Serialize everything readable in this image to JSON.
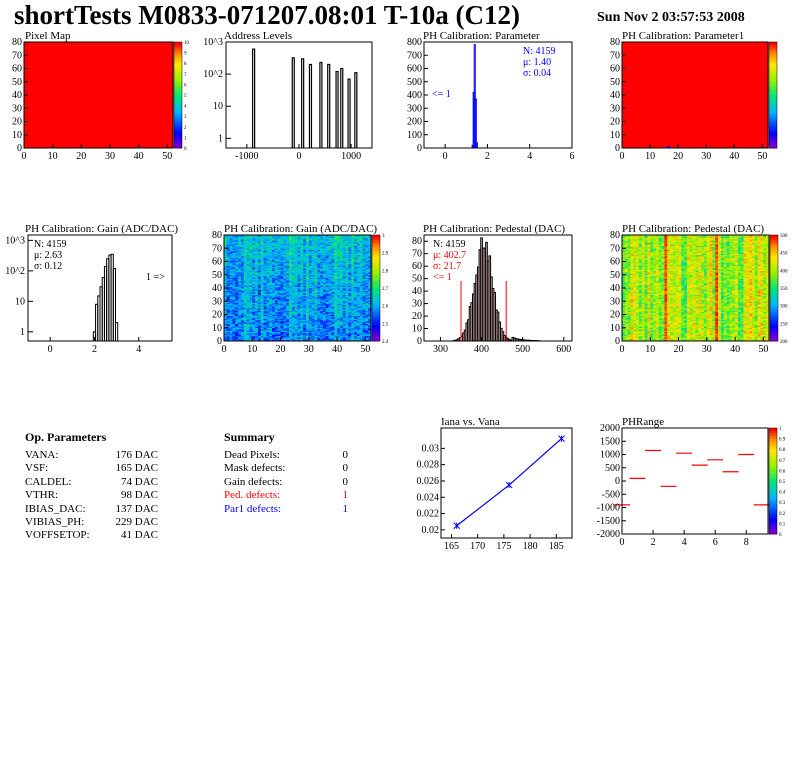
{
  "header": {
    "title": "shortTests M0833-071207.08:01 T-10a (C12)",
    "date": "Sun Nov  2 03:57:53 2008"
  },
  "colors": {
    "red": "#ff0000",
    "blue": "#0000ff",
    "black": "#000000"
  },
  "panels": {
    "pixel_map": {
      "title": "Pixel Map"
    },
    "address_levels": {
      "title": "Address Levels"
    },
    "ph_param": {
      "title": "PH Calibration: Parameter",
      "stats": {
        "n": "N: 4159",
        "mu": "μ: 1.40",
        "sigma": "σ: 0.04"
      },
      "underflow": "<= 1"
    },
    "ph_param1": {
      "title": "PH Calibration: Parameter1"
    },
    "gain_hist": {
      "title": "PH Calibration: Gain (ADC/DAC)",
      "stats": {
        "n": "N: 4159",
        "mu": "μ: 2.63",
        "sigma": "σ: 0.12"
      },
      "overflow": "1 =>"
    },
    "gain_map": {
      "title": "PH Calibration: Gain (ADC/DAC)"
    },
    "ped_hist": {
      "title": "PH Calibration: Pedestal (DAC)",
      "stats": {
        "n": "N: 4159",
        "mu": "μ: 402.7",
        "sigma": "σ: 21.7"
      },
      "underflow": "<= 1"
    },
    "ped_map": {
      "title": "PH Calibration: Pedestal (DAC)"
    },
    "iana": {
      "title": "Iana vs. Vana"
    },
    "phrange": {
      "title": "PHRange"
    }
  },
  "op_params": {
    "title": "Op. Parameters",
    "rows": [
      {
        "k": "VANA:",
        "v": "176 DAC"
      },
      {
        "k": "VSF:",
        "v": "165 DAC"
      },
      {
        "k": "CALDEL:",
        "v": "74 DAC"
      },
      {
        "k": "VTHR:",
        "v": "98 DAC"
      },
      {
        "k": "IBIAS_DAC:",
        "v": "137 DAC"
      },
      {
        "k": "VIBIAS_PH:",
        "v": "229 DAC"
      },
      {
        "k": "VOFFSETOP:",
        "v": "41 DAC"
      }
    ]
  },
  "summary": {
    "title": "Summary",
    "rows": [
      {
        "k": "Dead Pixels:",
        "v": "0",
        "color": "#000000"
      },
      {
        "k": "Mask defects:",
        "v": "0",
        "color": "#000000"
      },
      {
        "k": "Gain defects:",
        "v": "0",
        "color": "#000000"
      },
      {
        "k": "Ped. defects:",
        "v": "1",
        "color": "#ff0000"
      },
      {
        "k": "Par1 defects:",
        "v": "1",
        "color": "#0000ff"
      }
    ]
  },
  "chart_data": [
    {
      "id": "pixel_map",
      "type": "heatmap",
      "title": "Pixel Map",
      "xlim": [
        0,
        52
      ],
      "ylim": [
        0,
        80
      ],
      "xticks": [
        0,
        10,
        20,
        30,
        40,
        50
      ],
      "yticks": [
        0,
        10,
        20,
        30,
        40,
        50,
        60,
        70,
        80
      ],
      "fill": "uniform",
      "fill_color": "#ff0000",
      "colorbar_ticks": [
        "10",
        "9",
        "8",
        "7",
        "6",
        "5",
        "4",
        "3",
        "2",
        "1",
        "0"
      ]
    },
    {
      "id": "address_levels",
      "type": "bar",
      "title": "Address Levels",
      "log_y": true,
      "xlim": [
        -1400,
        1400
      ],
      "ylim": [
        0.5,
        1000
      ],
      "xticks": [
        -1000,
        0,
        1000
      ],
      "yticks_labels": [
        "1",
        "10",
        "10^2",
        "10^3"
      ],
      "peaks": [
        {
          "x": -870,
          "y": 600
        },
        {
          "x": -110,
          "y": 320
        },
        {
          "x": 70,
          "y": 300
        },
        {
          "x": 220,
          "y": 200
        },
        {
          "x": 420,
          "y": 230
        },
        {
          "x": 570,
          "y": 200
        },
        {
          "x": 730,
          "y": 120
        },
        {
          "x": 820,
          "y": 150
        },
        {
          "x": 960,
          "y": 70
        },
        {
          "x": 1090,
          "y": 110
        }
      ]
    },
    {
      "id": "ph_param",
      "type": "bar",
      "title": "PH Calibration: Parameter",
      "xlim": [
        -1,
        6
      ],
      "ylim": [
        0,
        800
      ],
      "xticks": [
        0,
        2,
        4,
        6
      ],
      "yticks": [
        0,
        100,
        200,
        300,
        400,
        500,
        600,
        700,
        800
      ],
      "x": [
        1.3,
        1.35,
        1.4,
        1.45,
        1.5
      ],
      "values": [
        20,
        420,
        780,
        370,
        40
      ]
    },
    {
      "id": "ph_param1",
      "type": "heatmap",
      "title": "PH Calibration: Parameter1",
      "xlim": [
        0,
        52
      ],
      "ylim": [
        0,
        80
      ],
      "xticks": [
        0,
        10,
        20,
        30,
        40,
        50
      ],
      "yticks": [
        0,
        10,
        20,
        30,
        40,
        50,
        60,
        70,
        80
      ],
      "fill": "uniform",
      "fill_color": "#ff0000",
      "low_pixel": {
        "x": 16,
        "y": 0
      },
      "colorbar_ticks": [
        "",
        "",
        "",
        "",
        "",
        "",
        "",
        "",
        "",
        ""
      ]
    },
    {
      "id": "gain_hist",
      "type": "bar",
      "title": "PH Calibration: Gain (ADC/DAC)",
      "log_y": true,
      "xlim": [
        -1,
        5.5
      ],
      "ylim": [
        0.5,
        1500
      ],
      "xticks": [
        0,
        2,
        4
      ],
      "yticks_labels": [
        "1",
        "10",
        "10^2",
        "10^3"
      ],
      "x": [
        2.0,
        2.1,
        2.2,
        2.3,
        2.4,
        2.5,
        2.6,
        2.7,
        2.8,
        2.9,
        3.0
      ],
      "values": [
        1,
        8,
        15,
        30,
        60,
        140,
        250,
        330,
        350,
        120,
        2
      ]
    },
    {
      "id": "gain_map",
      "type": "heatmap",
      "title": "PH Calibration: Gain (ADC/DAC)",
      "xlim": [
        0,
        52
      ],
      "ylim": [
        0,
        80
      ],
      "xticks": [
        0,
        10,
        20,
        30,
        40,
        50
      ],
      "yticks": [
        0,
        10,
        20,
        30,
        40,
        50,
        60,
        70,
        80
      ],
      "colorbar_ticks": [
        "3",
        "2.9",
        "2.8",
        "2.7",
        "2.6",
        "2.5",
        "2.4"
      ]
    },
    {
      "id": "ped_hist",
      "type": "bar",
      "title": "PH Calibration: Pedestal (DAC)",
      "xlim": [
        260,
        620
      ],
      "ylim": [
        0,
        85
      ],
      "xticks": [
        300,
        400,
        500,
        600
      ],
      "yticks": [
        0,
        10,
        20,
        30,
        40,
        50,
        60,
        70,
        80
      ],
      "mean": 402.7,
      "sigma": 21.7,
      "peak": 80,
      "cut_lines": [
        350,
        460
      ]
    },
    {
      "id": "ped_map",
      "type": "heatmap",
      "title": "PH Calibration: Pedestal (DAC)",
      "xlim": [
        0,
        52
      ],
      "ylim": [
        0,
        80
      ],
      "xticks": [
        0,
        10,
        20,
        30,
        40,
        50
      ],
      "yticks": [
        0,
        10,
        20,
        30,
        40,
        50,
        60,
        70,
        80
      ],
      "colorbar_ticks": [
        "500",
        "450",
        "400",
        "350",
        "300",
        "250",
        "200"
      ]
    },
    {
      "id": "iana",
      "type": "line",
      "title": "Iana vs. Vana",
      "xlim": [
        163,
        188
      ],
      "ylim": [
        0.019,
        0.0325
      ],
      "xticks": [
        165,
        170,
        175,
        180,
        185
      ],
      "yticks": [
        0.02,
        0.022,
        0.024,
        0.026,
        0.028,
        0.03
      ],
      "x": [
        166,
        176,
        186
      ],
      "y": [
        0.0205,
        0.0255,
        0.0312
      ]
    },
    {
      "id": "phrange",
      "type": "scatter",
      "title": "PHRange",
      "xlim": [
        0,
        9.4
      ],
      "ylim": [
        -2000,
        2000
      ],
      "xticks": [
        0,
        2,
        4,
        6,
        8
      ],
      "yticks": [
        2000,
        1500,
        1000,
        500,
        0,
        -500,
        -1000,
        -1500,
        -2000
      ],
      "x": [
        0,
        1,
        2,
        3,
        4,
        5,
        6,
        7,
        8,
        9
      ],
      "y": [
        -900,
        100,
        1150,
        -200,
        1050,
        600,
        800,
        350,
        1000,
        -900
      ],
      "colorbar_ticks": [
        "1",
        "0.9",
        "0.8",
        "0.7",
        "0.6",
        "0.5",
        "0.4",
        "0.3",
        "0.2",
        "0.1",
        "0"
      ]
    }
  ]
}
